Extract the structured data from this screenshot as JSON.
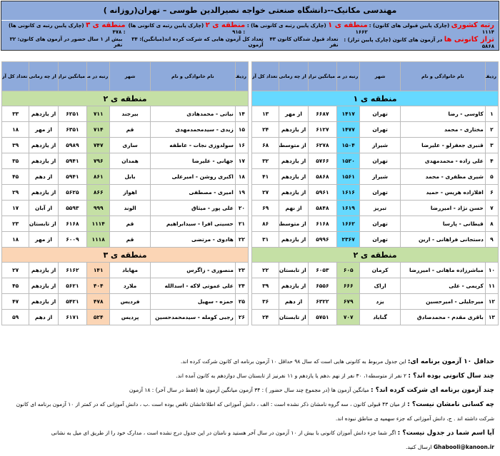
{
  "header": {
    "title": "مهندسی مکانیک--دانشگاه صنعتی خواجه نصیرالدین طوسی – تهران(روزانه )",
    "national_rank_label": "رتبه کشوری",
    "national_rank_text": "(چارک پایین قبولی های کانون) : ۱۱۱۴",
    "r1_label": "منطقه ی ۱",
    "r1_text": "(چارک پایین رتبه ی کانونی ها) : ۱۶۶۲",
    "r2_label": "منطقه ی ۲",
    "r2_text": "(چارک پایین رتبه ی کانونی ها) : ۹۱۵",
    "r3_label": "منطقه ی ۳",
    "r3_text": "(چارک پایین رتبه ی کانونی ها) : ۴۷۸",
    "taraz_label": "تراز کانونی ها",
    "taraz_text": "در آزمون های کانون (چارک پایین تراز) : ۵۸۶۸",
    "accepted": "تعداد قبول شدگان کانون ۴۳ نفر",
    "exams": "تعداد کل آزمون هایی که شرکت کرده اند(میانگین): ۳۴ آزمون",
    "over1": "بیش از ۱ سال حضور در آزمون های کانون: ۳۲ نفر"
  },
  "columns": [
    "ردیف",
    "نام خانوادگی و نام",
    "شهر",
    "رتبه در منطقه *",
    "میانگین تراز در آزمون های کانون",
    "از چه زمانی به کانون آمده اند",
    "تعداد کل آزمون ها در کانون"
  ],
  "right_table": [
    {
      "region": "منطقه ی ۱",
      "cls": "r1",
      "rows": [
        [
          "۱",
          "کاوسی - رضا",
          "تهران",
          "۱۴۱۷",
          "۶۶۸۷",
          "از مهر",
          "۱۳"
        ],
        [
          "۲",
          "مختاری - محمد",
          "تهران",
          "۱۴۷۷",
          "۶۱۲۷",
          "از یازدهم",
          "۲۴"
        ],
        [
          "۳",
          "قنبری جعفرلو - علیرضا",
          "شیراز",
          "۱۵۰۴",
          "۶۲۷۸",
          "از متوسطه۱",
          "۶۸"
        ],
        [
          "۴",
          "علی زاده - محمدمهدی",
          "تهران",
          "۱۵۲۰",
          "۵۷۶۶",
          "از یازدهم",
          "۳۲"
        ],
        [
          "۵",
          "شیری مظفری - محمد",
          "شیراز",
          "۱۵۶۱",
          "۵۸۶۸",
          "از یازدهم",
          "۴۱"
        ],
        [
          "۶",
          "افلازاده هریس - حمید",
          "تهران",
          "۱۶۱۶",
          "۵۹۶۱",
          "از یازدهم",
          "۲۷"
        ],
        [
          "۷",
          "حسن نژاد - امیررضا",
          "تبریز",
          "۱۶۱۹",
          "۵۸۴۸",
          "از نهم",
          "۶۹"
        ],
        [
          "۸",
          "قیطانی - پارسا",
          "تهران",
          "۱۶۶۲",
          "۶۱۶۸",
          "از متوسطه۱",
          "۸۶"
        ],
        [
          "۹",
          "دستجانی فراهانی - ارین",
          "تهران",
          "۲۳۶۷",
          "۵۹۹۶",
          "از یازدهم",
          "۳۱"
        ]
      ]
    },
    {
      "region": "منطقه ی ۲",
      "cls": "r2",
      "rows": [
        [
          "۱۰",
          "مباشرزاده ماهانی - امیررضا",
          "کرمان",
          "۶۰۵",
          "۶۰۵۳",
          "از تابستان",
          "۲۲"
        ],
        [
          "۱۱",
          "کریمی - علی",
          "اراک",
          "۶۶۶",
          "۶۵۵۶",
          "از یازدهم",
          "۳۹"
        ],
        [
          "۱۲",
          "میرجلیلی - امیرحسین",
          "یزد",
          "۶۷۹",
          "۶۳۲۲",
          "از دهم",
          "۳۶"
        ],
        [
          "۱۳",
          "باقری مقدم - محمدصادق",
          "گناباد",
          "۷۰۷",
          "۵۷۵۱",
          "از تابستان",
          "۲۴"
        ]
      ]
    }
  ],
  "left_table": [
    {
      "region": "منطقه ی ۲",
      "cls": "r2",
      "rows": [
        [
          "۱۴",
          "نیاتی - محمدهادی",
          "بیرجند",
          "۷۱۱",
          "۶۲۵۱",
          "از یازدهم",
          "۳۳"
        ],
        [
          "۱۵",
          "زیدی - سیدمحمدمهدی",
          "قم",
          "۷۱۴",
          "۶۳۵۱",
          "از مهر",
          "۱۸"
        ],
        [
          "۱۶",
          "سولدوزی نجات - عاطفه",
          "ساری",
          "۷۴۷",
          "۵۹۸۹",
          "از یازدهم",
          "۳۹"
        ],
        [
          "۱۷",
          "جهانی - علیرضا",
          "همدان",
          "۷۹۶",
          "۵۹۴۱",
          "از یازدهم",
          "۳۵"
        ],
        [
          "۱۸",
          "اکبری روشن - امیرعلی",
          "بابل",
          "۸۶۱",
          "۵۹۴۱",
          "از دهم",
          "۴۵"
        ],
        [
          "۱۹",
          "امیری - مصطفی",
          "اهواز",
          "۸۶۶",
          "۵۶۲۵",
          "از یازدهم",
          "۲۹"
        ],
        [
          "۲۰",
          "علی پور - میثاق",
          "الوند",
          "۹۹۹",
          "۵۵۹۳",
          "از آبان",
          "۱۷"
        ],
        [
          "۲۱",
          "حسینی افرا - سیدابراهیم",
          "قم",
          "۱۱۱۴",
          "۶۱۶۸",
          "از تابستان",
          "۲۳"
        ],
        [
          "۲۲",
          "هادوی - مرتضی",
          "قم",
          "۱۱۱۸",
          "۶۰۰۹",
          "از مهر",
          "۱۸"
        ]
      ]
    },
    {
      "region": "منطقه ی ۳",
      "cls": "r3",
      "rows": [
        [
          "۲۳",
          "منصوری - زاگرس",
          "مهاباد",
          "۱۴۱",
          "۶۱۶۲",
          "از یازدهم",
          "۲۷"
        ],
        [
          "۲۴",
          "علی عموتی لاکه - اسدالله",
          "ملارد",
          "۴۰۴",
          "۵۶۲۱",
          "از یازدهم",
          "۴۵"
        ],
        [
          "۲۵",
          "حمزه - سهیل",
          "فردیس",
          "۴۷۸",
          "۵۴۲۱",
          "از یازدهم",
          "۴۷"
        ],
        [
          "۲۶",
          "رجبی کومله - سیدمحمدحسین",
          "پردیس",
          "۵۲۴",
          "۶۱۷۱",
          "از دهم",
          "۵۹"
        ]
      ]
    }
  ],
  "notes": [
    {
      "q": "حداقل ۱۰ آزمون برنامه ای:",
      "a": " این جدول مربوط به کانونی هایی است که سال ۹۸ حداقل ۱۰ آزمون برنامه ای کانون شرکت کرده اند."
    },
    {
      "q": "چند سال کانونی بوده اند؟ :",
      "a": " ۲ نفر از متوسطه۱، ۳۰ نفر از نهم ،دهم یا یازدهم و ۱۱ نفرنیز از تابستان سال دوازدهم به کانون آمده اند."
    },
    {
      "q": "چند آزمون برنامه ای شرکت کرده اند؟ :",
      "a": " میانگین آزمون ها (در مجموع چند سال حضور ) : ۳۴ آزمون     میانگین آزمون ها (فقط در سال آخر) : ۱۸ آزمون"
    },
    {
      "q": "چه کسانی نامشان نیست؟ :",
      "a": " از میان ۴۳ قبولی کانون ، سه گروه نامشان ذکر نشده است : الف ، دانش آموزانی که اطلاعاتشان ناقص بوده است .ب ، دانش آموزانی که در کمتر از ۱۰ آزمون برنامه ای کانون شرکت داشته اند . ج، دانش آموزانی که جزء سهمیه ی مناطق نبوده اند."
    },
    {
      "q": "آیا اسم شما در جدول نیست؟ :",
      "a": " اگر شما جزء دانش آموزان کانونی با بیش از ۱۰ آزمون در سال آخر هستید و نامتان در این جدول درج نشده است ، مدارک خود را از طریق ای میل به نشانی"
    }
  ],
  "email": "Ghabooli@kanoon.ir",
  "email_suffix": "ارسال کنید."
}
